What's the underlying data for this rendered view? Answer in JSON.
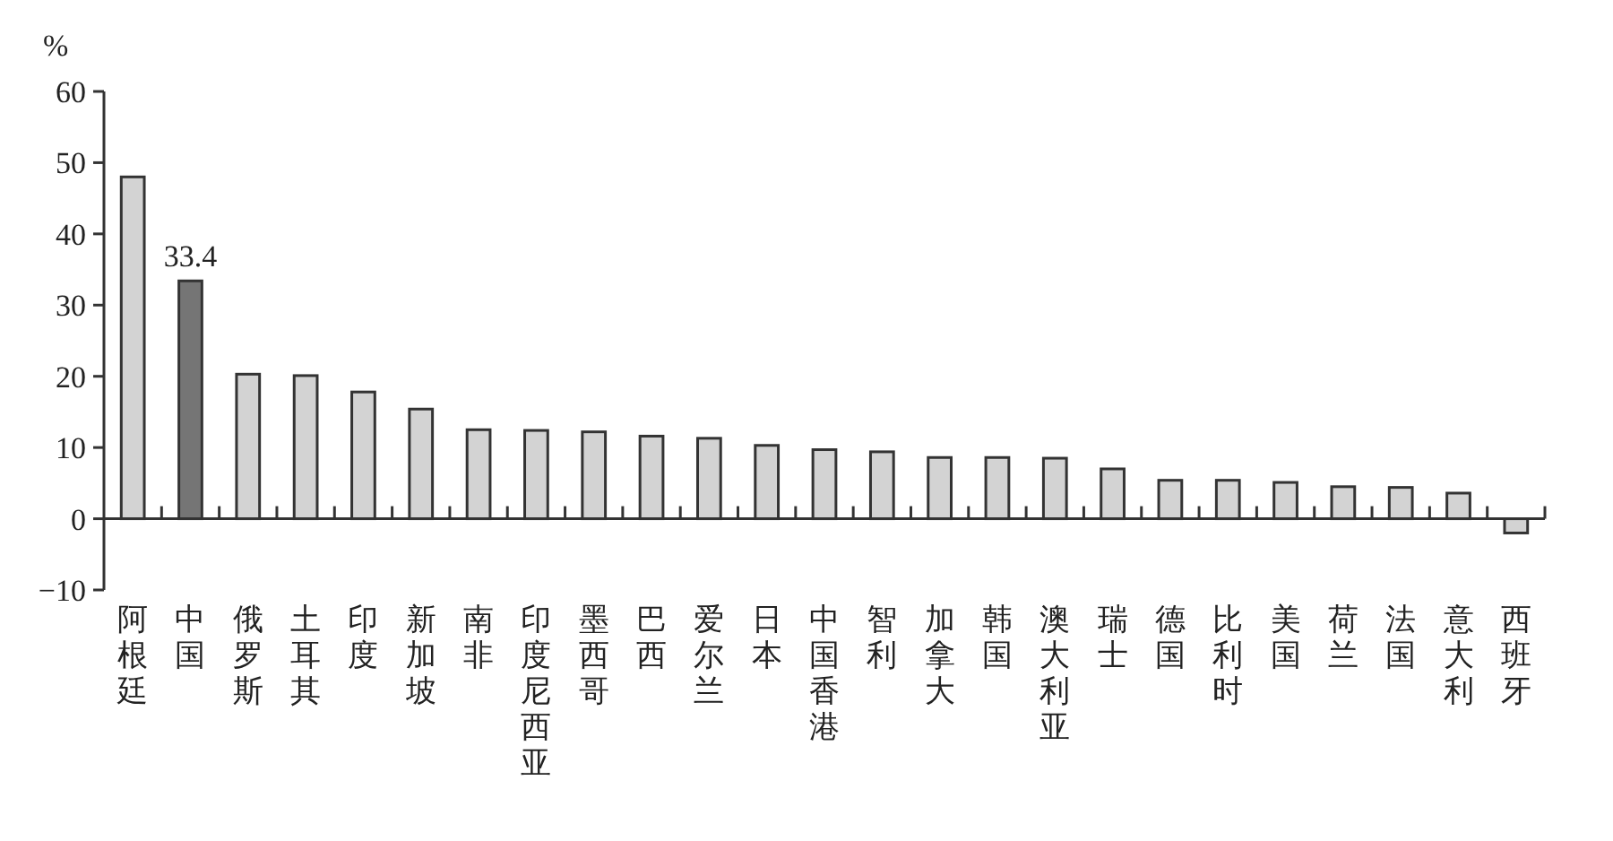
{
  "chart_data": {
    "type": "bar",
    "ylabel": "%",
    "categories": [
      "阿根廷",
      "中国",
      "俄罗斯",
      "土耳其",
      "印度",
      "新加坡",
      "南非",
      "印度尼西亚",
      "墨西哥",
      "巴西",
      "爱尔兰",
      "日本",
      "中国香港",
      "智利",
      "加拿大",
      "韩国",
      "澳大利亚",
      "瑞士",
      "德国",
      "比利时",
      "美国",
      "荷兰",
      "法国",
      "意大利",
      "西班牙"
    ],
    "values": [
      48,
      33.4,
      20.3,
      20.1,
      17.8,
      15.4,
      12.5,
      12.4,
      12.2,
      11.6,
      11.3,
      10.3,
      9.7,
      9.4,
      8.6,
      8.6,
      8.5,
      7.0,
      5.4,
      5.4,
      5.1,
      4.5,
      4.4,
      3.6,
      -2.0
    ],
    "colors": [
      "#d3d3d3",
      "#757575",
      "#d3d3d3",
      "#d3d3d3",
      "#d3d3d3",
      "#d3d3d3",
      "#d3d3d3",
      "#d3d3d3",
      "#d3d3d3",
      "#d3d3d3",
      "#d3d3d3",
      "#d3d3d3",
      "#d3d3d3",
      "#d3d3d3",
      "#d3d3d3",
      "#d3d3d3",
      "#d3d3d3",
      "#d3d3d3",
      "#d3d3d3",
      "#d3d3d3",
      "#d3d3d3",
      "#d3d3d3",
      "#d3d3d3",
      "#d3d3d3",
      "#d3d3d3"
    ],
    "value_labels": [
      null,
      "33.4",
      null,
      null,
      null,
      null,
      null,
      null,
      null,
      null,
      null,
      null,
      null,
      null,
      null,
      null,
      null,
      null,
      null,
      null,
      null,
      null,
      null,
      null,
      null
    ],
    "ylim": [
      -10,
      60
    ],
    "yticks": [
      -10,
      0,
      10,
      20,
      30,
      40,
      50,
      60
    ]
  }
}
